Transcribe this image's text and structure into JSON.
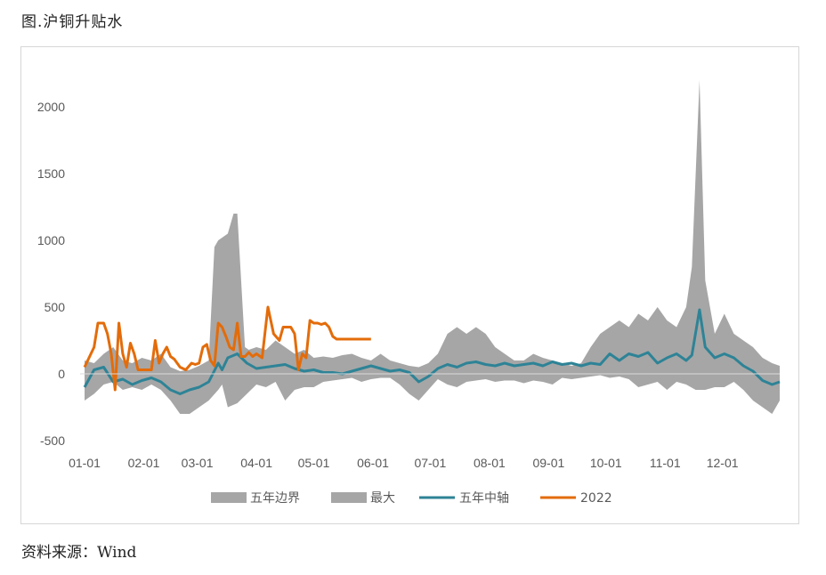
{
  "figure_title": "图.沪铜升贴水",
  "source": "资料来源：Wind",
  "colors": {
    "boundary": "#a6a6a6",
    "max": "#a6a6a6",
    "midline": "#2e8396",
    "series_2022": "#e36c0a",
    "axis": "#d9d9d9"
  },
  "chart_data": {
    "type": "area",
    "x_unit": "day of year",
    "x_ticks": [
      "01-01",
      "02-01",
      "03-01",
      "04-01",
      "05-01",
      "06-01",
      "07-01",
      "08-01",
      "09-01",
      "10-01",
      "11-01",
      "12-01"
    ],
    "x_tick_days": [
      0,
      31,
      59,
      90,
      120,
      151,
      181,
      212,
      243,
      273,
      304,
      334
    ],
    "ylim": [
      -500,
      2200
    ],
    "y_ticks": [
      2000,
      1500,
      1000,
      500,
      0,
      -500
    ],
    "legend_position": "bottom",
    "series": [
      {
        "name": "五年边界",
        "kind": "band-lower",
        "x": [
          0,
          5,
          10,
          15,
          20,
          25,
          30,
          35,
          40,
          45,
          50,
          55,
          60,
          65,
          70,
          72,
          75,
          80,
          85,
          90,
          95,
          100,
          105,
          110,
          115,
          120,
          125,
          130,
          135,
          140,
          145,
          150,
          155,
          160,
          165,
          170,
          175,
          180,
          185,
          190,
          195,
          200,
          205,
          210,
          215,
          220,
          225,
          230,
          235,
          240,
          245,
          250,
          255,
          260,
          265,
          270,
          275,
          280,
          285,
          290,
          295,
          300,
          305,
          310,
          315,
          320,
          325,
          330,
          335,
          340,
          345,
          350,
          355,
          360,
          364
        ],
        "values": [
          -200,
          -150,
          -80,
          -60,
          -120,
          -100,
          -120,
          -80,
          -120,
          -200,
          -300,
          -300,
          -250,
          -200,
          -120,
          -80,
          -250,
          -220,
          -150,
          -80,
          -100,
          -60,
          -200,
          -120,
          -100,
          -100,
          -60,
          -50,
          -40,
          -30,
          -60,
          -40,
          -30,
          -30,
          -80,
          -150,
          -200,
          -120,
          -40,
          -80,
          -100,
          -60,
          -50,
          -40,
          -60,
          -50,
          -50,
          -70,
          -50,
          -60,
          -80,
          -30,
          -40,
          -30,
          -20,
          -10,
          -30,
          -20,
          -40,
          -100,
          -80,
          -60,
          -120,
          -60,
          -80,
          -120,
          -120,
          -100,
          -100,
          -60,
          -120,
          -200,
          -250,
          -300,
          -200
        ]
      },
      {
        "name": "最大",
        "kind": "band-upper",
        "x": [
          0,
          5,
          10,
          15,
          20,
          25,
          30,
          35,
          40,
          45,
          50,
          55,
          60,
          65,
          68,
          70,
          75,
          78,
          80,
          84,
          86,
          90,
          95,
          100,
          105,
          110,
          115,
          120,
          125,
          130,
          135,
          140,
          145,
          150,
          155,
          160,
          165,
          170,
          175,
          180,
          185,
          190,
          195,
          200,
          205,
          210,
          215,
          220,
          225,
          230,
          235,
          240,
          245,
          250,
          255,
          260,
          265,
          270,
          275,
          280,
          285,
          290,
          295,
          300,
          305,
          310,
          315,
          318,
          322,
          325,
          330,
          335,
          340,
          345,
          350,
          355,
          360,
          364
        ],
        "values": [
          100,
          80,
          150,
          200,
          100,
          80,
          120,
          100,
          150,
          50,
          20,
          30,
          60,
          100,
          950,
          1000,
          1050,
          1200,
          1200,
          200,
          180,
          200,
          180,
          250,
          200,
          150,
          180,
          120,
          130,
          120,
          140,
          150,
          120,
          100,
          150,
          100,
          80,
          60,
          50,
          80,
          150,
          300,
          350,
          300,
          350,
          300,
          200,
          150,
          100,
          100,
          150,
          120,
          100,
          80,
          60,
          80,
          200,
          300,
          350,
          400,
          350,
          450,
          400,
          500,
          400,
          350,
          500,
          800,
          2200,
          700,
          300,
          450,
          300,
          250,
          200,
          120,
          80,
          60
        ]
      },
      {
        "name": "五年中轴",
        "kind": "line",
        "x": [
          0,
          5,
          10,
          15,
          20,
          25,
          30,
          35,
          40,
          45,
          50,
          55,
          60,
          65,
          70,
          72,
          75,
          80,
          85,
          90,
          95,
          100,
          105,
          110,
          115,
          120,
          125,
          130,
          135,
          140,
          145,
          150,
          155,
          160,
          165,
          170,
          175,
          180,
          185,
          190,
          195,
          200,
          205,
          210,
          215,
          220,
          225,
          230,
          235,
          240,
          245,
          250,
          255,
          260,
          265,
          270,
          275,
          280,
          285,
          290,
          295,
          300,
          305,
          310,
          315,
          318,
          322,
          325,
          330,
          335,
          340,
          345,
          350,
          355,
          360,
          364
        ],
        "values": [
          -100,
          30,
          50,
          -60,
          -40,
          -80,
          -50,
          -30,
          -60,
          -120,
          -150,
          -120,
          -100,
          -60,
          80,
          30,
          120,
          150,
          80,
          40,
          50,
          60,
          70,
          40,
          20,
          30,
          10,
          10,
          0,
          20,
          40,
          60,
          40,
          20,
          30,
          10,
          -60,
          -20,
          40,
          70,
          50,
          80,
          90,
          70,
          60,
          80,
          60,
          70,
          80,
          60,
          90,
          70,
          80,
          60,
          80,
          70,
          150,
          100,
          150,
          130,
          160,
          80,
          120,
          150,
          100,
          140,
          480,
          200,
          120,
          150,
          120,
          60,
          20,
          -50,
          -80,
          -60
        ]
      },
      {
        "name": "2022",
        "kind": "line",
        "x": [
          0,
          5,
          7,
          10,
          12,
          14,
          16,
          18,
          20,
          22,
          24,
          26,
          28,
          30,
          33,
          35,
          37,
          39,
          41,
          43,
          45,
          47,
          50,
          53,
          56,
          58,
          60,
          62,
          64,
          66,
          68,
          70,
          72,
          74,
          76,
          78,
          80,
          82,
          84,
          86,
          88,
          90,
          93,
          96,
          99,
          102,
          104,
          106,
          108,
          110,
          112,
          114,
          116,
          118,
          120,
          122,
          124,
          126,
          128,
          130,
          132,
          134,
          136,
          140,
          142,
          144,
          146,
          148,
          150
        ],
        "values": [
          50,
          200,
          380,
          380,
          300,
          150,
          -120,
          380,
          150,
          50,
          230,
          150,
          30,
          30,
          30,
          30,
          250,
          80,
          150,
          200,
          130,
          110,
          50,
          30,
          80,
          70,
          80,
          200,
          220,
          100,
          60,
          380,
          350,
          280,
          200,
          180,
          380,
          130,
          130,
          160,
          130,
          150,
          120,
          500,
          300,
          250,
          350,
          350,
          350,
          300,
          30,
          150,
          120,
          400,
          380,
          380,
          370,
          380,
          350,
          280,
          260,
          260,
          260,
          260,
          260,
          260,
          260,
          260,
          260
        ]
      }
    ]
  }
}
